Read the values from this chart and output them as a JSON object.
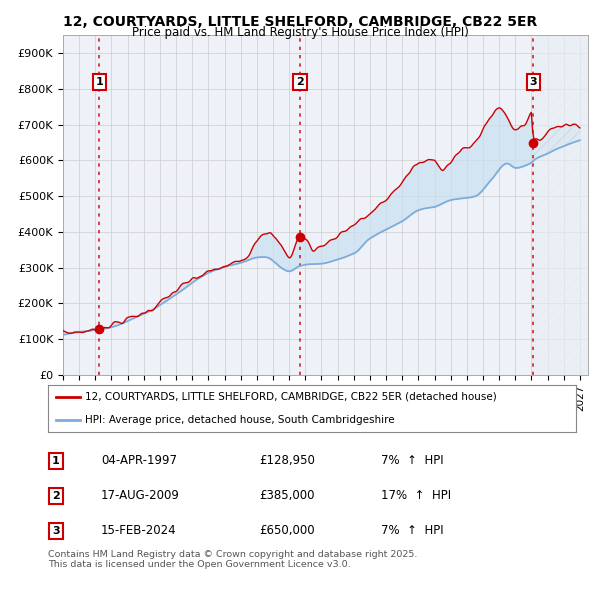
{
  "title_line1": "12, COURTYARDS, LITTLE SHELFORD, CAMBRIDGE, CB22 5ER",
  "title_line2": "Price paid vs. HM Land Registry's House Price Index (HPI)",
  "ylim": [
    0,
    950000
  ],
  "yticks": [
    0,
    100000,
    200000,
    300000,
    400000,
    500000,
    600000,
    700000,
    800000,
    900000
  ],
  "ytick_labels": [
    "£0",
    "£100K",
    "£200K",
    "£300K",
    "£400K",
    "£500K",
    "£600K",
    "£700K",
    "£800K",
    "£900K"
  ],
  "xlim_start": 1995.0,
  "xlim_end": 2027.5,
  "transactions": [
    {
      "date": "04-APR-1997",
      "year": 1997.25,
      "price": 128950,
      "label": "1",
      "pct": "7%",
      "dir": "↑"
    },
    {
      "date": "17-AUG-2009",
      "year": 2009.67,
      "price": 385000,
      "label": "2",
      "pct": "17%",
      "dir": "↑"
    },
    {
      "date": "15-FEB-2024",
      "year": 2024.12,
      "price": 650000,
      "label": "3",
      "pct": "7%",
      "dir": "↑"
    }
  ],
  "line_color_price": "#cc0000",
  "line_color_hpi": "#7aaddb",
  "fill_color": "#c8dff0",
  "vline_color": "#cc0000",
  "background_color": "#eef2f8",
  "grid_color": "#cccccc",
  "legend_label_price": "12, COURTYARDS, LITTLE SHELFORD, CAMBRIDGE, CB22 5ER (detached house)",
  "legend_label_hpi": "HPI: Average price, detached house, South Cambridgeshire",
  "footnote": "Contains HM Land Registry data © Crown copyright and database right 2025.\nThis data is licensed under the Open Government Licence v3.0."
}
